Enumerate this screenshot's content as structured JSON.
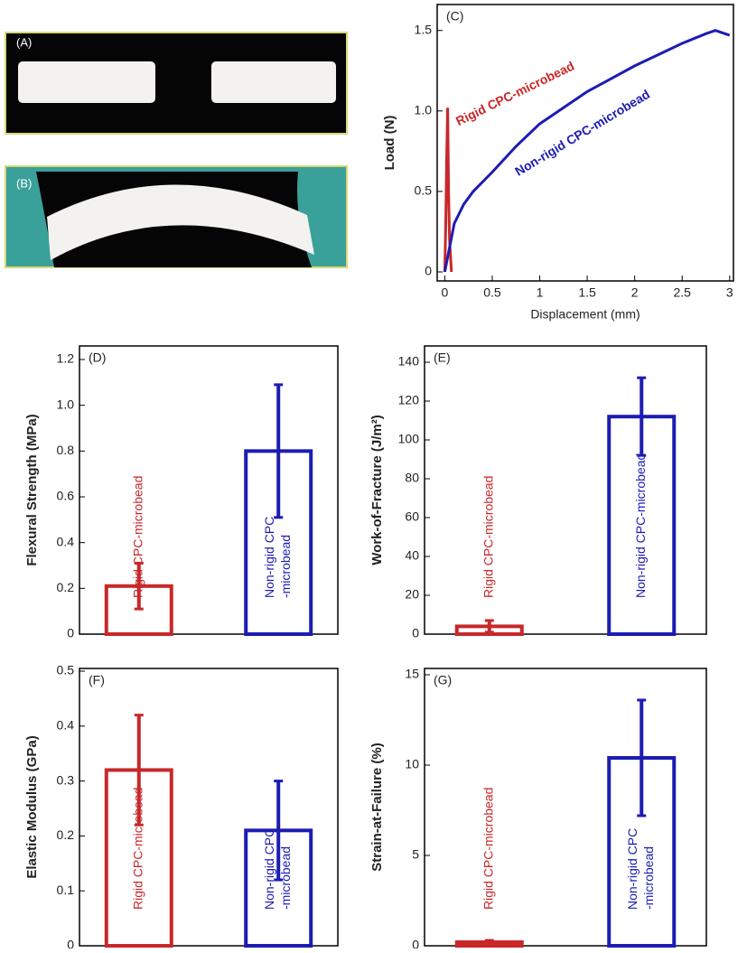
{
  "photos": [
    {
      "label": "(A)"
    },
    {
      "label": "(B)"
    }
  ],
  "chart_data": [
    {
      "type": "line",
      "title": "(C)",
      "x_label": "Displacement (mm)",
      "y_label": "Load (N)",
      "xlim": [
        -0.08,
        3.04
      ],
      "xticks": [
        0,
        0.5,
        1,
        1.5,
        2,
        2.5,
        3
      ],
      "ylim": [
        0,
        1.65
      ],
      "yticks": [
        0,
        0.5,
        {
          "value": 1,
          "label": "1.0"
        },
        1.5
      ],
      "series": [
        {
          "name": "Rigid CPC-microbead",
          "color": "#c8282a",
          "x": [
            0,
            0.01,
            0.02,
            0.03,
            0.04,
            0.05,
            0.07
          ],
          "values": [
            0,
            0.3,
            0.7,
            1.02,
            0.5,
            0.2,
            0
          ]
        },
        {
          "name": "Non-rigid CPC-microbead",
          "color": "#1c1cb4",
          "x": [
            0,
            0.1,
            0.2,
            0.3,
            0.5,
            0.75,
            1,
            1.25,
            1.5,
            1.75,
            2,
            2.25,
            2.5,
            2.75,
            2.85,
            3
          ],
          "values": [
            0,
            0.3,
            0.42,
            0.5,
            0.62,
            0.78,
            0.92,
            1.02,
            1.12,
            1.2,
            1.28,
            1.35,
            1.42,
            1.48,
            1.5,
            1.47
          ]
        }
      ]
    },
    {
      "type": "bar",
      "title": "(D)",
      "y_label": "Flexural Strength (MPa)",
      "categories": [
        [
          "Rigid CPC-microbead"
        ],
        [
          "Non-rigid CPC",
          "-microbead"
        ]
      ],
      "values": [
        0.21,
        0.8
      ],
      "errors": [
        0.1,
        0.29
      ],
      "colors": [
        "#c8282a",
        "#1c1cb4"
      ],
      "ylim": [
        0,
        1.2
      ],
      "yticks": [
        0,
        0.2,
        0.4,
        0.6,
        0.8,
        {
          "value": 1,
          "label": "1.0"
        },
        1.2
      ]
    },
    {
      "type": "bar",
      "title": "(E)",
      "y_label": "Work-of-Fracture (J/m²)",
      "categories": [
        [
          "Rigid CPC-microbead"
        ],
        [
          "Non-rigid CPC-microbead"
        ]
      ],
      "values": [
        4,
        112
      ],
      "errors": [
        3,
        20
      ],
      "colors": [
        "#c8282a",
        "#1c1cb4"
      ],
      "ylim": [
        0,
        140
      ],
      "yticks": [
        0,
        20,
        40,
        60,
        80,
        100,
        120,
        140
      ]
    },
    {
      "type": "bar",
      "title": "(F)",
      "y_label": "Elastic Modulus (GPa)",
      "categories": [
        [
          "Rigid CPC-microbead"
        ],
        [
          "Non-rigid CPC",
          "-microbead"
        ]
      ],
      "values": [
        0.32,
        0.21
      ],
      "errors": [
        0.1,
        0.09
      ],
      "colors": [
        "#c8282a",
        "#1c1cb4"
      ],
      "ylim": [
        0,
        0.5
      ],
      "yticks": [
        0,
        0.1,
        0.2,
        0.3,
        0.4,
        0.5
      ]
    },
    {
      "type": "bar",
      "title": "(G)",
      "y_label": "Strain-at-Failure (%)",
      "categories": [
        [
          "Rigid CPC-microbead"
        ],
        [
          "Non-rigid CPC",
          "-microbead"
        ]
      ],
      "values": [
        0.2,
        10.4
      ],
      "errors": [
        0.1,
        3.2
      ],
      "colors": [
        "#c8282a",
        "#1c1cb4"
      ],
      "ylim": [
        0,
        15
      ],
      "yticks": [
        0,
        5,
        10,
        15
      ]
    }
  ]
}
